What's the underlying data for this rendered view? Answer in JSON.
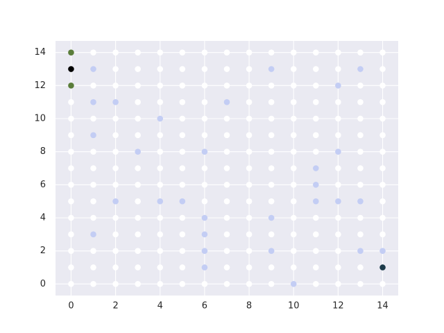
{
  "chart_data": {
    "type": "scatter",
    "xlim": [
      -0.7,
      14.7
    ],
    "ylim": [
      -0.7,
      14.7
    ],
    "xticks": [
      0,
      2,
      4,
      6,
      8,
      10,
      12,
      14
    ],
    "yticks": [
      0,
      2,
      4,
      6,
      8,
      10,
      12,
      14
    ],
    "grid": true,
    "background": "#eaeaf2",
    "series": [
      {
        "color": "#ffffff",
        "x": [
          1,
          2,
          3,
          4,
          5,
          6,
          7,
          8,
          9,
          10,
          11,
          12,
          13,
          14,
          2,
          3,
          4,
          5,
          6,
          7,
          8,
          10,
          11,
          12,
          14,
          1,
          2,
          3,
          4,
          5,
          6,
          7,
          8,
          9,
          10,
          11,
          13,
          14,
          0,
          3,
          4,
          5,
          6,
          8,
          9,
          10,
          11,
          12,
          13,
          14,
          0,
          1,
          2,
          3,
          5,
          6,
          7,
          8,
          9,
          10,
          11,
          12,
          13,
          14,
          0,
          2,
          3,
          4,
          5,
          6,
          7,
          8,
          9,
          10,
          11,
          12,
          13,
          14,
          0,
          1,
          2,
          4,
          5,
          7,
          8,
          9,
          10,
          11,
          13,
          14,
          0,
          1,
          2,
          3,
          4,
          5,
          6,
          7,
          8,
          9,
          10,
          12,
          13,
          14,
          0,
          1,
          2,
          3,
          4,
          5,
          6,
          7,
          8,
          9,
          10,
          12,
          13,
          14,
          0,
          1,
          3,
          6,
          7,
          8,
          9,
          10,
          14,
          0,
          1,
          2,
          3,
          4,
          5,
          7,
          8,
          10,
          11,
          12,
          13,
          14,
          0,
          2,
          3,
          4,
          5,
          7,
          8,
          9,
          10,
          11,
          12,
          13,
          14,
          0,
          1,
          2,
          3,
          4,
          5,
          7,
          8,
          10,
          11,
          12,
          0,
          1,
          2,
          3,
          4,
          5,
          7,
          8,
          9,
          10,
          11,
          12,
          13,
          0,
          1,
          2,
          3,
          4,
          5,
          6,
          7,
          8,
          9,
          11,
          12,
          13,
          14
        ],
        "values": [
          14,
          14,
          14,
          14,
          14,
          14,
          14,
          14,
          14,
          14,
          14,
          14,
          14,
          14,
          13,
          13,
          13,
          13,
          13,
          13,
          13,
          13,
          13,
          13,
          13,
          12,
          12,
          12,
          12,
          12,
          12,
          12,
          12,
          12,
          12,
          12,
          12,
          12,
          11,
          11,
          11,
          11,
          11,
          11,
          11,
          11,
          11,
          11,
          11,
          11,
          10,
          10,
          10,
          10,
          10,
          10,
          10,
          10,
          10,
          10,
          10,
          10,
          10,
          10,
          9,
          9,
          9,
          9,
          9,
          9,
          9,
          9,
          9,
          9,
          9,
          9,
          9,
          9,
          8,
          8,
          8,
          8,
          8,
          8,
          8,
          8,
          8,
          8,
          8,
          8,
          7,
          7,
          7,
          7,
          7,
          7,
          7,
          7,
          7,
          7,
          7,
          7,
          7,
          7,
          6,
          6,
          6,
          6,
          6,
          6,
          6,
          6,
          6,
          6,
          6,
          6,
          6,
          6,
          5,
          5,
          5,
          5,
          5,
          5,
          5,
          5,
          5,
          4,
          4,
          4,
          4,
          4,
          4,
          4,
          4,
          4,
          4,
          4,
          4,
          4,
          3,
          3,
          3,
          3,
          3,
          3,
          3,
          3,
          3,
          3,
          3,
          3,
          3,
          2,
          2,
          2,
          2,
          2,
          2,
          2,
          2,
          2,
          2,
          2,
          1,
          1,
          1,
          1,
          1,
          1,
          1,
          1,
          1,
          1,
          1,
          1,
          1,
          0,
          0,
          0,
          0,
          0,
          0,
          0,
          0,
          0,
          0,
          0,
          0,
          0,
          0
        ]
      },
      {
        "color": "#c3cdf4",
        "x": [
          1,
          9,
          13,
          12,
          1,
          2,
          7,
          4,
          1,
          3,
          6,
          12,
          11,
          11,
          2,
          4,
          5,
          11,
          12,
          13,
          6,
          9,
          1,
          6,
          6,
          9,
          13,
          14,
          6,
          10
        ],
        "values": [
          13,
          13,
          13,
          12,
          11,
          11,
          11,
          10,
          9,
          8,
          8,
          8,
          7,
          6,
          5,
          5,
          5,
          5,
          5,
          5,
          4,
          4,
          3,
          3,
          2,
          2,
          2,
          2,
          1,
          0
        ]
      },
      {
        "color": "#5a7d3a",
        "x": [
          0,
          0
        ],
        "values": [
          14,
          12
        ]
      },
      {
        "color": "#000000",
        "x": [
          0
        ],
        "values": [
          13
        ]
      },
      {
        "color": "#1c3a4a",
        "x": [
          14
        ],
        "values": [
          1
        ]
      }
    ]
  }
}
